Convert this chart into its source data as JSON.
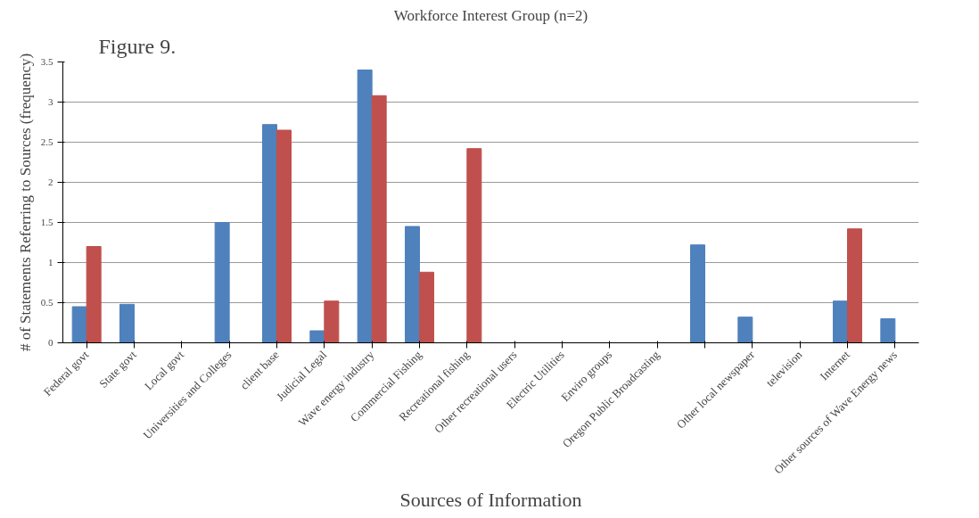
{
  "chart_data": {
    "type": "bar",
    "title": "Workforce Interest Group (n=2)",
    "xlabel": "Sources of Information",
    "ylabel": "# of Statements Referring to Sources (frequency)",
    "annotations": [
      "Figure 9."
    ],
    "categories": [
      "Federal govt",
      "State govt",
      "Local govt",
      "Universities and Colleges",
      "client base",
      "Judicial Legal",
      "Wave energy industry",
      "Commercial Fishing",
      "Recreational fishing",
      "Other recreational users",
      "Electric Utilities",
      "Enviro groups",
      "Oregon Public Broadcasting",
      null,
      "Other local newspaper",
      "television",
      "Internet",
      "Other sources of Wave Energy news"
    ],
    "series": [
      {
        "color": "#4f81bd",
        "values": [
          0.45,
          0.48,
          null,
          1.5,
          2.72,
          0.15,
          3.4,
          1.45,
          null,
          null,
          null,
          null,
          null,
          1.22,
          0.32,
          null,
          0.52,
          0.3
        ]
      },
      {
        "color": "#c0504d",
        "values": [
          1.2,
          null,
          null,
          null,
          2.65,
          0.52,
          3.08,
          0.88,
          2.42,
          null,
          null,
          null,
          null,
          null,
          null,
          null,
          1.42,
          null
        ]
      }
    ],
    "ylim": [
      0,
      3.5
    ],
    "yticks": [
      0,
      0.5,
      1,
      1.5,
      2,
      2.5,
      3,
      3.5
    ],
    "grid": "y"
  }
}
